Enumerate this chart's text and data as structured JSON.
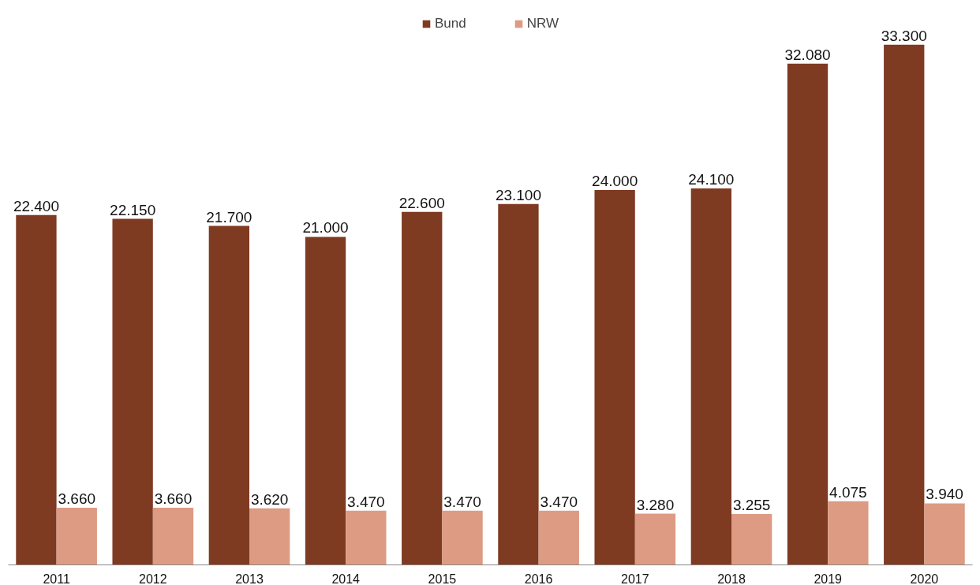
{
  "chart_data": {
    "type": "bar",
    "categories": [
      "2011",
      "2012",
      "2013",
      "2014",
      "2015",
      "2016",
      "2017",
      "2018",
      "2019",
      "2020"
    ],
    "series": [
      {
        "name": "Bund",
        "color": "#7f3a22",
        "values": [
          22400,
          22150,
          21700,
          21000,
          22600,
          23100,
          24000,
          24100,
          32080,
          33300
        ],
        "value_labels": [
          "22.400",
          "22.150",
          "21.700",
          "21.000",
          "22.600",
          "23.100",
          "24.000",
          "24.100",
          "32.080",
          "33.300"
        ]
      },
      {
        "name": "NRW",
        "color": "#dd9b83",
        "values": [
          3660,
          3660,
          3620,
          3470,
          3470,
          3470,
          3280,
          3255,
          4075,
          3940
        ],
        "value_labels": [
          "3.660",
          "3.660",
          "3.620",
          "3.470",
          "3.470",
          "3.470",
          "3.280",
          "3.255",
          "4.075",
          "3.940"
        ]
      }
    ],
    "legend": "top",
    "grid": false
  }
}
